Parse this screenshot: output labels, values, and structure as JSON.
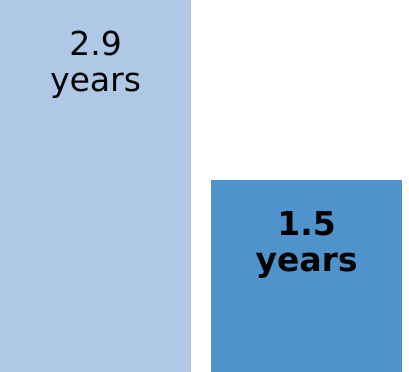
{
  "chart_data": {
    "type": "bar",
    "categories": [
      "",
      ""
    ],
    "values": [
      2.9,
      1.5
    ],
    "value_labels": [
      {
        "number": "2.9",
        "unit": "years",
        "bold": false
      },
      {
        "number": "1.5",
        "unit": "years",
        "bold": true
      }
    ],
    "colors": [
      "#aec8e6",
      "#4f93cc"
    ],
    "label_color": "#000000",
    "ylim": [
      0,
      2.9
    ],
    "title": "",
    "xlabel": "",
    "ylabel": "",
    "grid": false,
    "legend": "none"
  }
}
